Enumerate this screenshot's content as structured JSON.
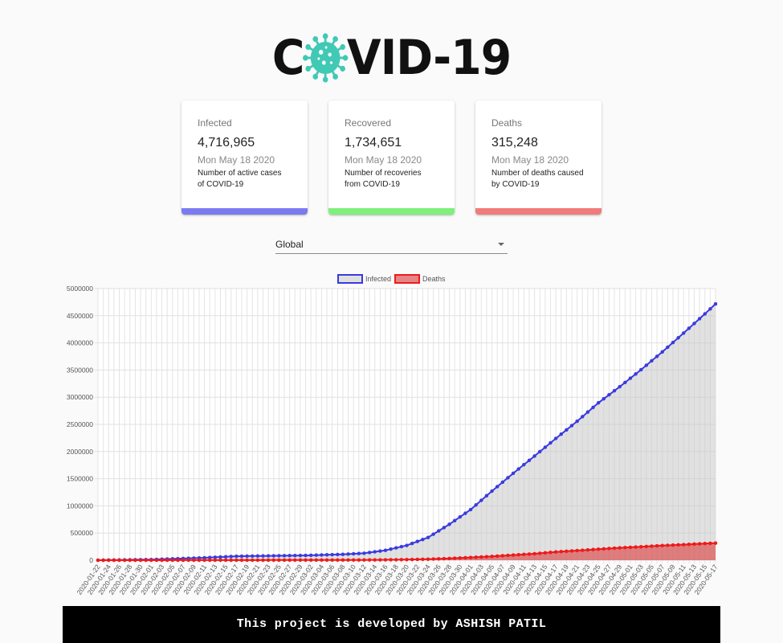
{
  "logo": {
    "prefix": "C",
    "suffix": "VID-19",
    "icon": "virus-icon",
    "icon_color": "#40c9b5"
  },
  "cards": [
    {
      "label": "Infected",
      "count": "4,716,965",
      "date": "Mon May 18 2020",
      "desc1": "Number of active cases",
      "desc2": "of COVID-19",
      "color": "#7b7bf0"
    },
    {
      "label": "Recovered",
      "count": "1,734,651",
      "date": "Mon May 18 2020",
      "desc1": "Number of recoveries",
      "desc2": "from COVID-19",
      "color": "#7ef07b"
    },
    {
      "label": "Deaths",
      "count": "315,248",
      "date": "Mon May 18 2020",
      "desc1": "Number of deaths caused",
      "desc2": "by COVID-19",
      "color": "#f07b7b"
    }
  ],
  "country_select": {
    "value": "Global",
    "icon": "chevron-down-icon"
  },
  "chart_data": {
    "type": "area",
    "legend_position": "top",
    "grid": true,
    "x_start": "2020-01-22",
    "x_end": "2020-05-17",
    "tick_labels": [
      "2020-01-22",
      "2020-01-24",
      "2020-01-26",
      "2020-01-28",
      "2020-01-30",
      "2020-02-01",
      "2020-02-03",
      "2020-02-05",
      "2020-02-07",
      "2020-02-09",
      "2020-02-11",
      "2020-02-13",
      "2020-02-15",
      "2020-02-17",
      "2020-02-19",
      "2020-02-21",
      "2020-02-23",
      "2020-02-25",
      "2020-02-27",
      "2020-02-29",
      "2020-03-02",
      "2020-03-04",
      "2020-03-06",
      "2020-03-08",
      "2020-03-10",
      "2020-03-12",
      "2020-03-14",
      "2020-03-16",
      "2020-03-18",
      "2020-03-20",
      "2020-03-22",
      "2020-03-24",
      "2020-03-26",
      "2020-03-28",
      "2020-03-30",
      "2020-04-01",
      "2020-04-03",
      "2020-04-05",
      "2020-04-07",
      "2020-04-09",
      "2020-04-11",
      "2020-04-13",
      "2020-04-15",
      "2020-04-17",
      "2020-04-19",
      "2020-04-21",
      "2020-04-23",
      "2020-04-25",
      "2020-04-27",
      "2020-04-29",
      "2020-05-01",
      "2020-05-03",
      "2020-05-05",
      "2020-05-07",
      "2020-05-09",
      "2020-05-11",
      "2020-05-13",
      "2020-05-15",
      "2020-05-17"
    ],
    "ylim": [
      0,
      5000000
    ],
    "yticks": [
      0,
      500000,
      1000000,
      1500000,
      2000000,
      2500000,
      3000000,
      3500000,
      4000000,
      4500000,
      5000000
    ],
    "series": [
      {
        "name": "Infected",
        "color": "#3a3ae0",
        "fill": "rgba(200,200,200,0.55)",
        "anchors": [
          [
            "2020-01-22",
            555
          ],
          [
            "2020-02-01",
            12000
          ],
          [
            "2020-02-11",
            45000
          ],
          [
            "2020-02-17",
            73000
          ],
          [
            "2020-03-01",
            88000
          ],
          [
            "2020-03-08",
            108000
          ],
          [
            "2020-03-12",
            128000
          ],
          [
            "2020-03-16",
            182000
          ],
          [
            "2020-03-20",
            272000
          ],
          [
            "2020-03-24",
            418000
          ],
          [
            "2020-03-28",
            661000
          ],
          [
            "2020-04-01",
            932000
          ],
          [
            "2020-04-05",
            1272000
          ],
          [
            "2020-04-09",
            1600000
          ],
          [
            "2020-04-13",
            1917000
          ],
          [
            "2020-04-17",
            2241000
          ],
          [
            "2020-04-21",
            2557000
          ],
          [
            "2020-04-25",
            2897000
          ],
          [
            "2020-04-29",
            3193000
          ],
          [
            "2020-05-03",
            3506000
          ],
          [
            "2020-05-07",
            3834000
          ],
          [
            "2020-05-11",
            4180000
          ],
          [
            "2020-05-15",
            4534000
          ],
          [
            "2020-05-17",
            4716965
          ]
        ]
      },
      {
        "name": "Deaths",
        "color": "#ee1a1a",
        "fill": "rgba(220,70,70,0.65)",
        "anchors": [
          [
            "2020-01-22",
            17
          ],
          [
            "2020-02-11",
            1100
          ],
          [
            "2020-03-01",
            3000
          ],
          [
            "2020-03-11",
            4600
          ],
          [
            "2020-03-15",
            6500
          ],
          [
            "2020-03-20",
            11300
          ],
          [
            "2020-03-24",
            19000
          ],
          [
            "2020-03-28",
            32000
          ],
          [
            "2020-04-01",
            50000
          ],
          [
            "2020-04-05",
            70000
          ],
          [
            "2020-04-09",
            95000
          ],
          [
            "2020-04-13",
            119000
          ],
          [
            "2020-04-17",
            153000
          ],
          [
            "2020-04-21",
            177000
          ],
          [
            "2020-04-25",
            203000
          ],
          [
            "2020-04-29",
            228000
          ],
          [
            "2020-05-03",
            247000
          ],
          [
            "2020-05-07",
            270000
          ],
          [
            "2020-05-11",
            287000
          ],
          [
            "2020-05-15",
            307000
          ],
          [
            "2020-05-17",
            315248
          ]
        ]
      }
    ]
  },
  "footer": {
    "text": "This project is developed by ASHISH PATIL"
  }
}
